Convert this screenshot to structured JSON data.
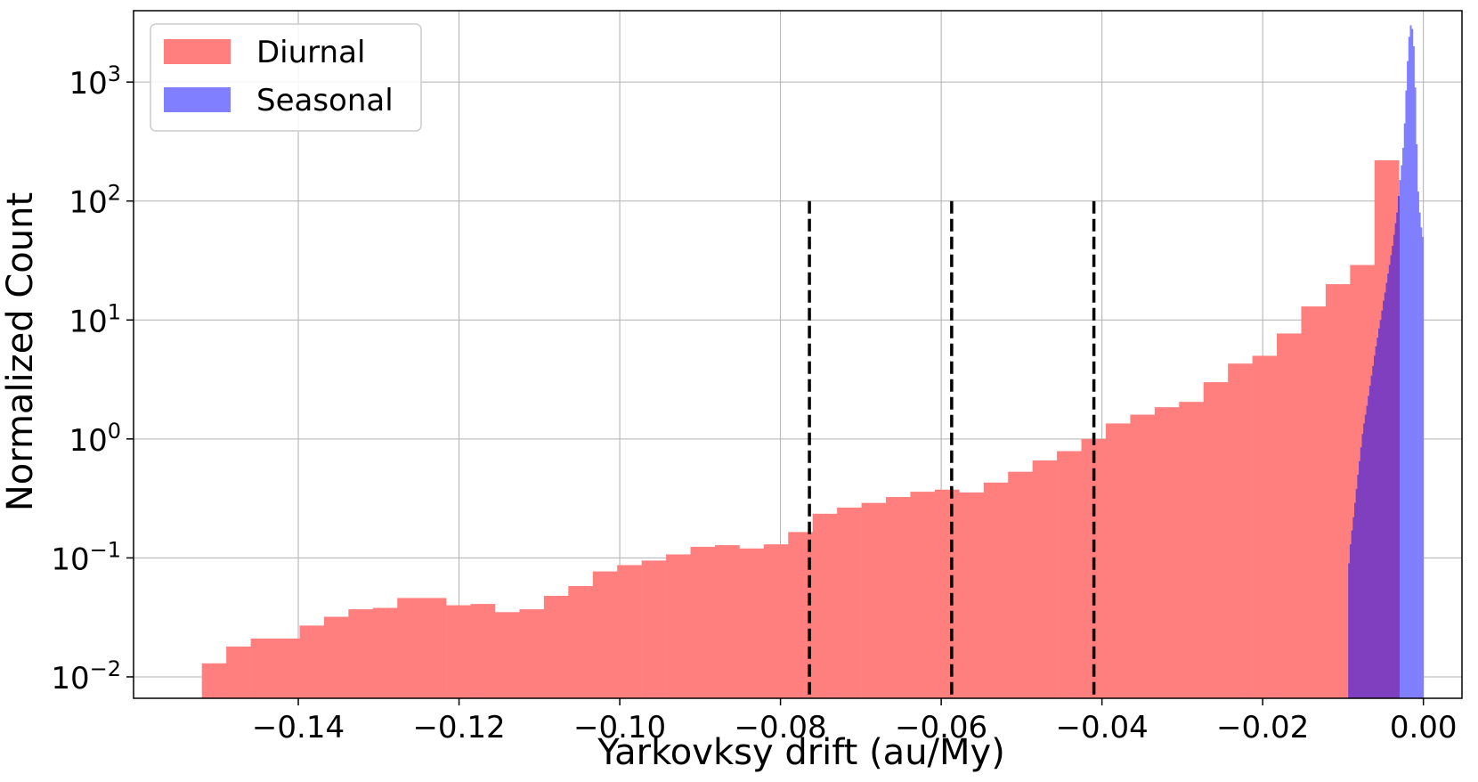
{
  "chart_data": {
    "type": "bar",
    "title": "",
    "xlabel": "Yarkovksy drift (au/My)",
    "ylabel": "Normalized Count",
    "xlim": [
      -0.1605,
      0.0048
    ],
    "ylim_log10": [
      -2.18,
      3.6
    ],
    "yscale": "log",
    "grid": true,
    "legend_position": "upper-left",
    "x_ticks": [
      {
        "value": -0.14,
        "label": "−0.14"
      },
      {
        "value": -0.12,
        "label": "−0.12"
      },
      {
        "value": -0.1,
        "label": "−0.10"
      },
      {
        "value": -0.08,
        "label": "−0.08"
      },
      {
        "value": -0.06,
        "label": "−0.06"
      },
      {
        "value": -0.04,
        "label": "−0.04"
      },
      {
        "value": -0.02,
        "label": "−0.02"
      },
      {
        "value": 0.0,
        "label": "0.00"
      }
    ],
    "y_ticks": [
      {
        "exp": -2,
        "base": "10",
        "sup": "−2"
      },
      {
        "exp": -1,
        "base": "10",
        "sup": "−1"
      },
      {
        "exp": 0,
        "base": "10",
        "sup": "0"
      },
      {
        "exp": 1,
        "base": "10",
        "sup": "1"
      },
      {
        "exp": 2,
        "base": "10",
        "sup": "2"
      },
      {
        "exp": 3,
        "base": "10",
        "sup": "3"
      }
    ],
    "vlines": [
      {
        "x": -0.0764,
        "top": 100
      },
      {
        "x": -0.0587,
        "top": 100
      },
      {
        "x": -0.041,
        "top": 100
      }
    ],
    "series": [
      {
        "name": "Diurnal",
        "color": "#ff7f7f",
        "bin_start": -0.152,
        "bin_width": 0.00304,
        "values": [
          0.013,
          0.018,
          0.021,
          0.021,
          0.027,
          0.032,
          0.037,
          0.038,
          0.046,
          0.046,
          0.04,
          0.041,
          0.035,
          0.037,
          0.048,
          0.058,
          0.077,
          0.087,
          0.095,
          0.107,
          0.124,
          0.128,
          0.12,
          0.13,
          0.165,
          0.235,
          0.265,
          0.29,
          0.325,
          0.36,
          0.375,
          0.355,
          0.43,
          0.53,
          0.66,
          0.79,
          1.0,
          1.35,
          1.6,
          1.85,
          2.05,
          3.0,
          4.3,
          5.0,
          7.7,
          13.0,
          20.0,
          29.0,
          220.0
        ]
      },
      {
        "name": "Seasonal",
        "color": "#7f7fff",
        "bin_start": -0.00935,
        "bin_width": 0.000187,
        "values": [
          0.09,
          0.13,
          0.17,
          0.22,
          0.29,
          0.38,
          0.5,
          0.65,
          0.85,
          1.1,
          1.35,
          1.6,
          1.9,
          2.3,
          2.8,
          3.4,
          4.1,
          5.0,
          6.0,
          7.1,
          8.5,
          10.0,
          12.0,
          14.5,
          17.0,
          20.5,
          24.5,
          29.0,
          35.0,
          42.0,
          52.0,
          65.0,
          80.0,
          110.0,
          150.0,
          200.0,
          280.0,
          450.0,
          850.0,
          1500.0,
          2400.0,
          3000.0,
          2800.0,
          2000.0,
          900.0,
          300.0,
          120.0,
          80.0,
          60.0,
          50.0
        ]
      }
    ],
    "overlap_color": "#7f3fbf"
  }
}
